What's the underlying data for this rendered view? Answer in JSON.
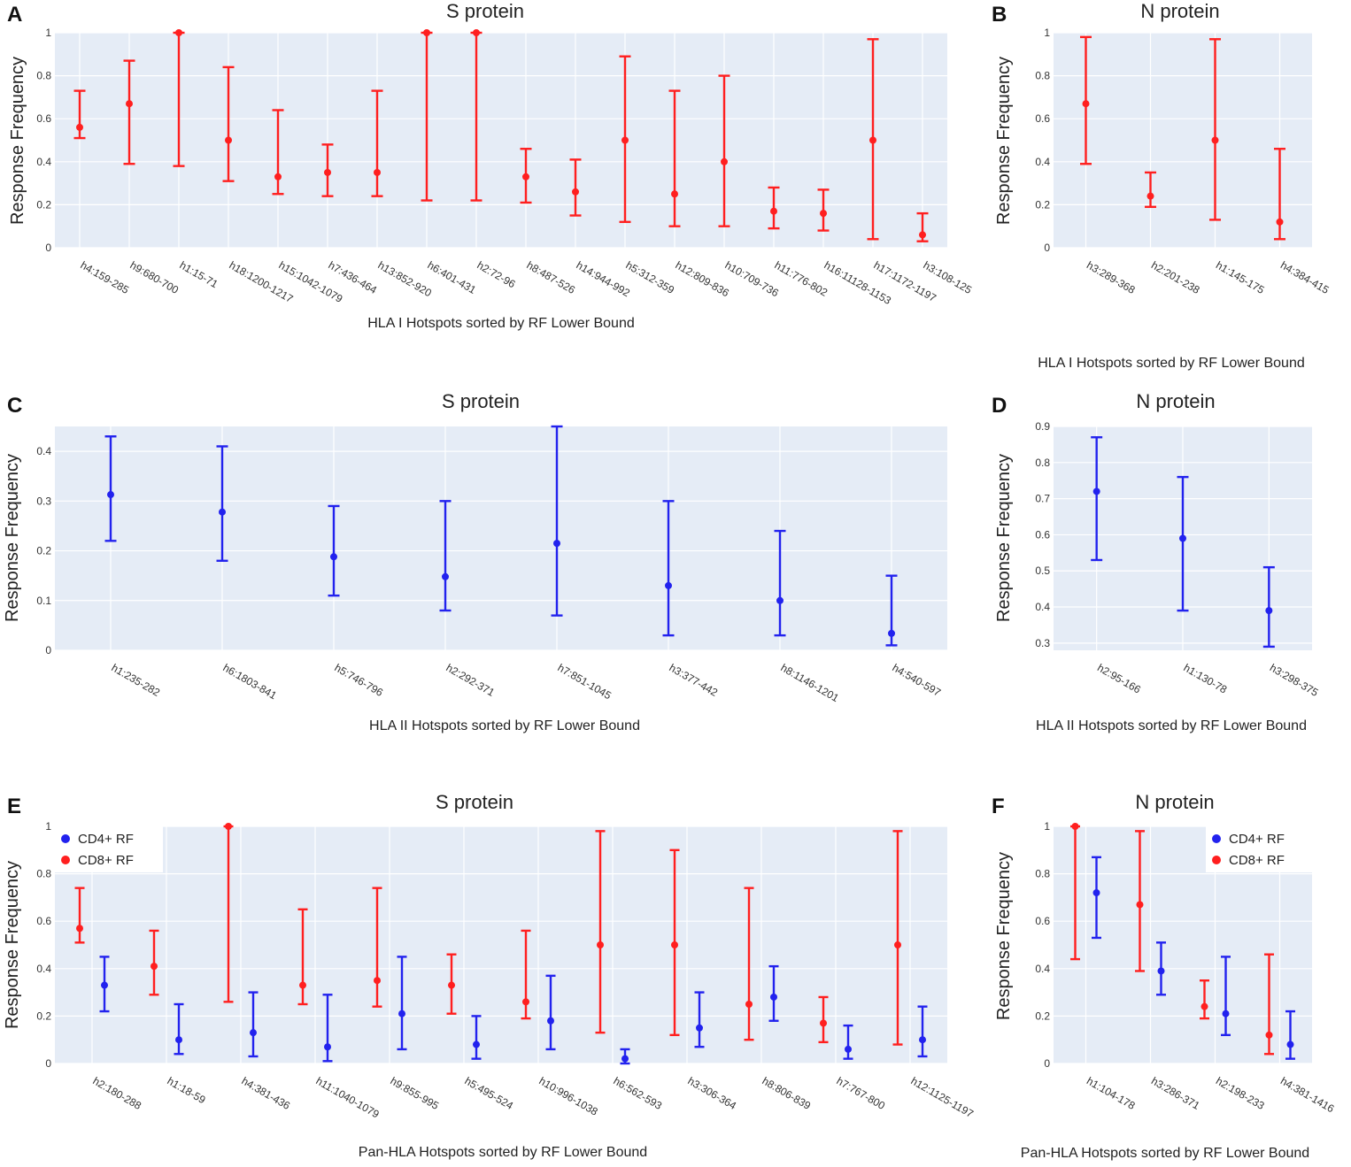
{
  "colors": {
    "red": "#ff1f1f",
    "blue": "#2222ee",
    "plot_bg": "#e5ecf6",
    "grid": "#ffffff"
  },
  "chart_data": [
    {
      "panel": "A",
      "type": "errorbar",
      "title": "S protein",
      "xlabel": "HLA I Hotspots sorted by RF Lower Bound",
      "ylabel": "Response Frequency",
      "ylim": [
        0,
        1
      ],
      "yticks": [
        "0",
        "0.2",
        "0.4",
        "0.6",
        "0.8",
        "1"
      ],
      "categories": [
        "h4:159-285",
        "h9:680-700",
        "h1:15-71",
        "h18:1200-1217",
        "h15:1042-1079",
        "h7:436-464",
        "h13:852-920",
        "h6:401-431",
        "h2:72-96",
        "h8:487-526",
        "h14:944-992",
        "h5:312-359",
        "h12:809-836",
        "h10:709-736",
        "h11:776-802",
        "h16:11128-1153",
        "h17:1172-1197",
        "h3:108-125"
      ],
      "series": [
        {
          "name": "CD8+ RF",
          "color": "red",
          "values": [
            0.56,
            0.67,
            1.0,
            0.5,
            0.33,
            0.35,
            0.35,
            1.0,
            1.0,
            0.33,
            0.26,
            0.5,
            0.25,
            0.4,
            0.17,
            0.16,
            0.5,
            0.06
          ],
          "lower": [
            0.51,
            0.39,
            0.38,
            0.31,
            0.25,
            0.24,
            0.24,
            0.22,
            0.22,
            0.21,
            0.15,
            0.12,
            0.1,
            0.1,
            0.09,
            0.08,
            0.04,
            0.03
          ],
          "upper": [
            0.73,
            0.87,
            1.0,
            0.84,
            0.64,
            0.48,
            0.73,
            1.0,
            1.0,
            0.46,
            0.41,
            0.89,
            0.73,
            0.8,
            0.28,
            0.27,
            0.97,
            0.16
          ]
        }
      ]
    },
    {
      "panel": "B",
      "type": "errorbar",
      "title": "N protein",
      "xlabel": "HLA I Hotspots sorted by RF Lower Bound",
      "ylabel": "Response Frequency",
      "ylim": [
        0,
        1
      ],
      "yticks": [
        "0",
        "0.2",
        "0.4",
        "0.6",
        "0.8",
        "1"
      ],
      "categories": [
        "h3:289-368",
        "h2:201-238",
        "h1:145-175",
        "h4:384-415"
      ],
      "series": [
        {
          "name": "CD8+ RF",
          "color": "red",
          "values": [
            0.67,
            0.24,
            0.5,
            0.12
          ],
          "lower": [
            0.39,
            0.19,
            0.13,
            0.04
          ],
          "upper": [
            0.98,
            0.35,
            0.97,
            0.46
          ]
        }
      ]
    },
    {
      "panel": "C",
      "type": "errorbar",
      "title": "S protein",
      "xlabel": "HLA II Hotspots sorted by RF Lower Bound",
      "ylabel": "Response Frequency",
      "ylim": [
        0,
        0.45
      ],
      "yticks": [
        "0",
        "0.1",
        "0.2",
        "0.3",
        "0.4"
      ],
      "categories": [
        "h1:235-282",
        "h6:1803-841",
        "h5:746-796",
        "h2:292-371",
        "h7:851-1045",
        "h3:377-442",
        "h8:1146-1201",
        "h4:540-597"
      ],
      "series": [
        {
          "name": "CD4+ RF",
          "color": "blue",
          "values": [
            0.313,
            0.278,
            0.188,
            0.148,
            0.215,
            0.13,
            0.1,
            0.034
          ],
          "lower": [
            0.22,
            0.18,
            0.11,
            0.08,
            0.07,
            0.03,
            0.03,
            0.01
          ],
          "upper": [
            0.43,
            0.41,
            0.29,
            0.3,
            0.45,
            0.3,
            0.24,
            0.15
          ]
        }
      ]
    },
    {
      "panel": "D",
      "type": "errorbar",
      "title": "N protein",
      "xlabel": "HLA II Hotspots sorted by RF Lower Bound",
      "ylabel": "Response Frequency",
      "ylim": [
        0.28,
        0.9
      ],
      "yticks": [
        "0.3",
        "0.4",
        "0.5",
        "0.6",
        "0.7",
        "0.8",
        "0.9"
      ],
      "categories": [
        "h2:95-166",
        "h1:130-78",
        "h3:298-375"
      ],
      "series": [
        {
          "name": "CD4+ RF",
          "color": "blue",
          "values": [
            0.72,
            0.59,
            0.39
          ],
          "lower": [
            0.53,
            0.39,
            0.29
          ],
          "upper": [
            0.87,
            0.76,
            0.51
          ]
        }
      ]
    },
    {
      "panel": "E",
      "type": "errorbar",
      "title": "S protein",
      "xlabel": "Pan-HLA Hotspots sorted by RF Lower Bound",
      "ylabel": "Response Frequency",
      "ylim": [
        0,
        1
      ],
      "yticks": [
        "0",
        "0.2",
        "0.4",
        "0.6",
        "0.8",
        "1"
      ],
      "legend": [
        "CD4+ RF",
        "CD8+ RF"
      ],
      "legend_position": "top-left",
      "categories": [
        "h2:180-288",
        "h1:18-59",
        "h4:381-436",
        "h11:1040-1079",
        "h9:855-995",
        "h5:495-524",
        "h10:996-1038",
        "h6:562-593",
        "h3:306-364",
        "h8:806-839",
        "h7:767-800",
        "h12:1125-1197"
      ],
      "series": [
        {
          "name": "CD8+ RF",
          "color": "red",
          "values": [
            0.57,
            0.41,
            1.0,
            0.33,
            0.35,
            0.33,
            0.26,
            0.5,
            0.5,
            0.25,
            0.17,
            0.5
          ],
          "lower": [
            0.51,
            0.29,
            0.26,
            0.25,
            0.24,
            0.21,
            0.19,
            0.13,
            0.12,
            0.1,
            0.09,
            0.08
          ],
          "upper": [
            0.74,
            0.56,
            1.0,
            0.65,
            0.74,
            0.46,
            0.56,
            0.98,
            0.9,
            0.74,
            0.28,
            0.98
          ]
        },
        {
          "name": "CD4+ RF",
          "color": "blue",
          "values": [
            0.33,
            0.1,
            0.13,
            0.07,
            0.21,
            0.08,
            0.18,
            0.02,
            0.15,
            0.28,
            0.06,
            0.1
          ],
          "lower": [
            0.22,
            0.04,
            0.03,
            0.01,
            0.06,
            0.02,
            0.06,
            0.0,
            0.07,
            0.18,
            0.02,
            0.03
          ],
          "upper": [
            0.45,
            0.25,
            0.3,
            0.29,
            0.45,
            0.2,
            0.37,
            0.06,
            0.3,
            0.41,
            0.16,
            0.24
          ]
        }
      ]
    },
    {
      "panel": "F",
      "type": "errorbar",
      "title": "N protein",
      "xlabel": "Pan-HLA Hotspots sorted by RF Lower Bound",
      "ylabel": "Response Frequency",
      "ylim": [
        0,
        1
      ],
      "yticks": [
        "0",
        "0.2",
        "0.4",
        "0.6",
        "0.8",
        "1"
      ],
      "legend": [
        "CD4+ RF",
        "CD8+ RF"
      ],
      "legend_position": "top-right",
      "categories": [
        "h1:104-178",
        "h3:286-371",
        "h2:198-233",
        "h4:381-1416"
      ],
      "series": [
        {
          "name": "CD8+ RF",
          "color": "red",
          "values": [
            1.0,
            0.67,
            0.24,
            0.12
          ],
          "lower": [
            0.44,
            0.39,
            0.19,
            0.04
          ],
          "upper": [
            1.0,
            0.98,
            0.35,
            0.46
          ]
        },
        {
          "name": "CD4+ RF",
          "color": "blue",
          "values": [
            0.72,
            0.39,
            0.21,
            0.08
          ],
          "lower": [
            0.53,
            0.29,
            0.12,
            0.02
          ],
          "upper": [
            0.87,
            0.51,
            0.45,
            0.22
          ]
        }
      ]
    }
  ]
}
